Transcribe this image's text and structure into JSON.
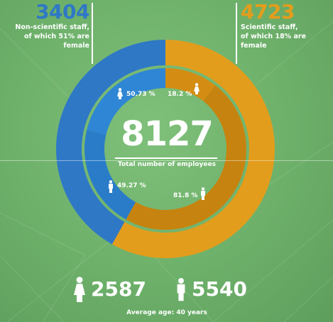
{
  "colors": {
    "background": "#6db06a",
    "blue_outer": "#2f78c6",
    "blue_inner": "#2f86d4",
    "gold_outer": "#e39d1c",
    "gold_inner": "#c7830f",
    "text": "#ffffff"
  },
  "icons": [
    "female-icon",
    "male-icon"
  ],
  "header": {
    "left": {
      "value": "3404",
      "line1": "Non-scientific staff,",
      "line2": "of which 51% are female"
    },
    "right": {
      "value": "4723",
      "line1": "Scientific staff,",
      "line2": "of which 18% are female"
    }
  },
  "center": {
    "total": "8127",
    "label": "Total number of employees"
  },
  "labels": {
    "nonsci_female": "50.73 %",
    "nonsci_male": "49.27 %",
    "sci_female": "18.2 %",
    "sci_male": "81.8 %"
  },
  "footer": {
    "female_total": "2587",
    "male_total": "5540",
    "average_age": "Average age: 40 years"
  },
  "chart_data": {
    "type": "pie",
    "variant": "nested-donut",
    "outer_ring": {
      "categories": [
        "Non-scientific staff",
        "Scientific staff"
      ],
      "values": [
        3404,
        4723
      ]
    },
    "inner_ring": {
      "groups": [
        {
          "group": "Non-scientific staff",
          "categories": [
            "female",
            "male"
          ],
          "values": [
            50.73,
            49.27
          ]
        },
        {
          "group": "Scientific staff",
          "categories": [
            "female",
            "male"
          ],
          "values": [
            18.2,
            81.8
          ]
        }
      ]
    },
    "total": 8127,
    "gender_totals": {
      "female": 2587,
      "male": 5540
    }
  }
}
